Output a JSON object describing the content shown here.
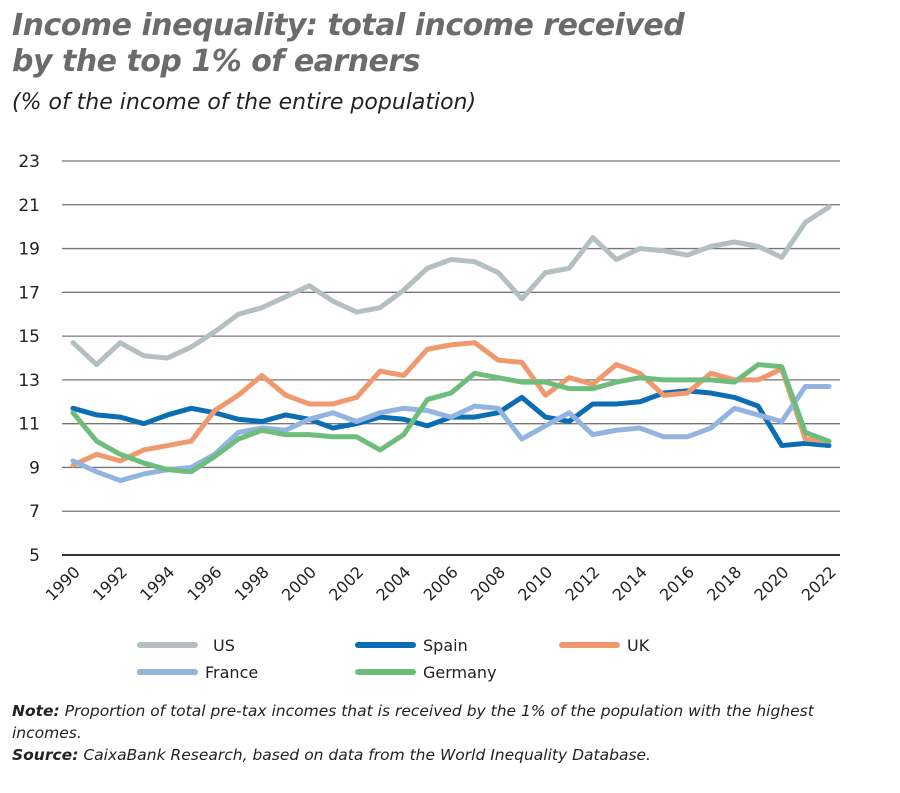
{
  "title_line1": "Income inequality: total income received",
  "title_line2": "by the top 1% of earners",
  "subtitle": "(% of the income of the entire population)",
  "note_label": "Note:",
  "note_text": "Proportion of total pre-tax incomes that is received by the 1% of the population with the highest incomes.",
  "source_label": "Source:",
  "source_text": "CaixaBank Research, based on data from the World Inequality Database.",
  "chart_data": {
    "type": "line",
    "title": "Income inequality: total income received by the top 1% of earners",
    "ylabel": "",
    "xlabel": "",
    "ylim": [
      5,
      23
    ],
    "yticks": [
      "5",
      "7",
      "9",
      "11",
      "13",
      "15",
      "17",
      "19",
      "21",
      "23"
    ],
    "xticks": [
      "1990",
      "1992",
      "1994",
      "1996",
      "1998",
      "2000",
      "2002",
      "2004",
      "2006",
      "2008",
      "2010",
      "2012",
      "2014",
      "2016",
      "2018",
      "2020",
      "2022"
    ],
    "x": [
      1990,
      1991,
      1992,
      1993,
      1994,
      1995,
      1996,
      1997,
      1998,
      1999,
      2000,
      2001,
      2002,
      2003,
      2004,
      2005,
      2006,
      2007,
      2008,
      2009,
      2010,
      2011,
      2012,
      2013,
      2014,
      2015,
      2016,
      2017,
      2018,
      2019,
      2020,
      2021,
      2022
    ],
    "grid": true,
    "legend": "bottom",
    "series": [
      {
        "name": "US",
        "color": "#b3bfc1",
        "values": [
          14.7,
          13.7,
          14.7,
          14.1,
          14.0,
          14.5,
          15.2,
          16.0,
          16.3,
          16.8,
          17.3,
          16.6,
          16.1,
          16.3,
          17.1,
          18.1,
          18.5,
          18.4,
          17.9,
          16.7,
          17.9,
          18.1,
          19.5,
          18.5,
          19.0,
          18.9,
          18.7,
          19.1,
          19.3,
          19.1,
          18.6,
          20.2,
          20.9
        ]
      },
      {
        "name": "Spain",
        "color": "#0b6db3",
        "values": [
          11.7,
          11.4,
          11.3,
          11.0,
          11.4,
          11.7,
          11.5,
          11.2,
          11.1,
          11.4,
          11.2,
          10.8,
          11.0,
          11.3,
          11.2,
          10.9,
          11.3,
          11.3,
          11.5,
          12.2,
          11.3,
          11.1,
          11.9,
          11.9,
          12.0,
          12.4,
          12.5,
          12.4,
          12.2,
          11.8,
          10.0,
          10.1,
          10.0
        ]
      },
      {
        "name": "UK",
        "color": "#f0986e",
        "values": [
          9.1,
          9.6,
          9.3,
          9.8,
          10.0,
          10.2,
          11.6,
          12.3,
          13.2,
          12.3,
          11.9,
          11.9,
          12.2,
          13.4,
          13.2,
          14.4,
          14.6,
          14.7,
          13.9,
          13.8,
          12.3,
          13.1,
          12.8,
          13.7,
          13.3,
          12.3,
          12.4,
          13.3,
          13.0,
          13.0,
          13.5,
          10.3,
          10.2
        ]
      },
      {
        "name": "France",
        "color": "#93b4e0",
        "values": [
          9.3,
          8.8,
          8.4,
          8.7,
          8.9,
          9.0,
          9.6,
          10.6,
          10.8,
          10.7,
          11.2,
          11.5,
          11.1,
          11.5,
          11.7,
          11.6,
          11.3,
          11.8,
          11.7,
          10.3,
          10.9,
          11.5,
          10.5,
          10.7,
          10.8,
          10.4,
          10.4,
          10.8,
          11.7,
          11.4,
          11.1,
          12.7,
          12.7
        ]
      },
      {
        "name": "Germany",
        "color": "#6fbd7d",
        "values": [
          11.5,
          10.2,
          9.6,
          9.2,
          8.9,
          8.8,
          9.5,
          10.3,
          10.7,
          10.5,
          10.5,
          10.4,
          10.4,
          9.8,
          10.5,
          12.1,
          12.4,
          13.3,
          13.1,
          12.9,
          12.9,
          12.6,
          12.6,
          12.9,
          13.1,
          13.0,
          13.0,
          13.0,
          12.9,
          13.7,
          13.6,
          10.6,
          10.2
        ]
      }
    ]
  }
}
